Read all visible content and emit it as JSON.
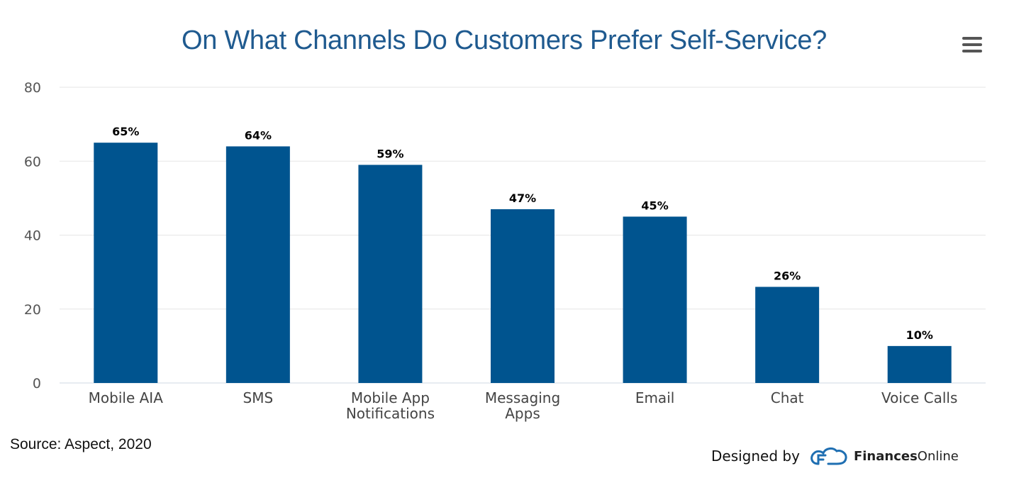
{
  "chart_data": {
    "type": "bar",
    "title": "On What Channels Do Customers Prefer Self-Service?",
    "categories": [
      [
        "Mobile AIA"
      ],
      [
        "SMS"
      ],
      [
        "Mobile App",
        "Notifications"
      ],
      [
        "Messaging",
        "Apps"
      ],
      [
        "Email"
      ],
      [
        "Chat"
      ],
      [
        "Voice Calls"
      ]
    ],
    "values": [
      65,
      64,
      59,
      47,
      45,
      26,
      10
    ],
    "data_labels": [
      "65%",
      "64%",
      "59%",
      "47%",
      "45%",
      "26%",
      "10%"
    ],
    "ylim": [
      0,
      80
    ],
    "yticks": [
      0,
      20,
      40,
      60,
      80
    ],
    "xlabel": "",
    "ylabel": "",
    "grid": true,
    "legend": "none",
    "colors": {
      "bar": "#00548f",
      "grid": "#e6e6e6",
      "axis_text": "#555555",
      "label_text": "#000000"
    }
  },
  "footer": {
    "source": "Source: Aspect, 2020",
    "designed_by": "Designed by",
    "brand_bold": "Finances",
    "brand_regular": "Online"
  },
  "menu": {
    "icon": "hamburger-menu-icon"
  }
}
